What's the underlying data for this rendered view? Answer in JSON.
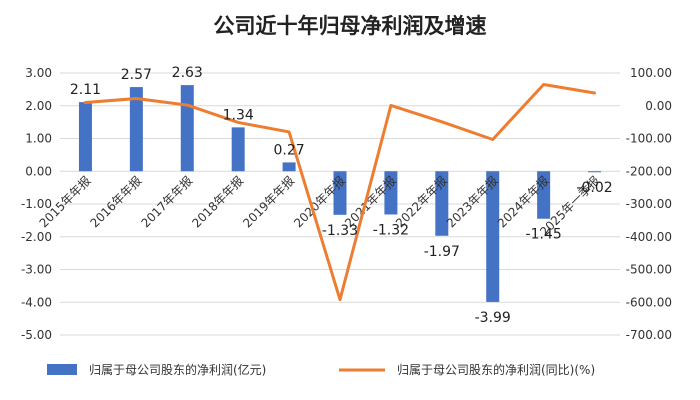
{
  "chart_data": {
    "type": "bar+line",
    "title": "公司近十年归母净利润及增速",
    "categories": [
      "2015年年报",
      "2016年年报",
      "2017年年报",
      "2018年年报",
      "2019年年报",
      "2020年年报",
      "2021年年报",
      "2022年年报",
      "2023年年报",
      "2024年年报",
      "2025年一季报"
    ],
    "series": [
      {
        "name": "归属于母公司股东的净利润(亿元)",
        "type": "bar",
        "axis": "left",
        "color": "#4472C4",
        "values": [
          2.11,
          2.57,
          2.63,
          1.34,
          0.27,
          -1.33,
          -1.32,
          -1.97,
          -3.99,
          -1.45,
          -0.02
        ],
        "labels": [
          "2.11",
          "2.57",
          "2.63",
          "1.34",
          "0.27",
          "-1.33",
          "-1.32",
          "-1.97",
          "-3.99",
          "-1.45",
          "-0.02"
        ]
      },
      {
        "name": "归属于母公司股东的净利润(同比)(%)",
        "type": "line",
        "axis": "right",
        "color": "#ED7D31",
        "values": [
          10,
          22,
          2,
          -51,
          -80,
          -592,
          1,
          -49,
          -103,
          65,
          39
        ]
      }
    ],
    "y_left": {
      "range": [
        -5,
        3
      ],
      "ticks": [
        "3.00",
        "2.00",
        "1.00",
        "0.00",
        "-1.00",
        "-2.00",
        "-3.00",
        "-4.00",
        "-5.00"
      ]
    },
    "y_right": {
      "range": [
        -700,
        100
      ],
      "ticks": [
        "100.00",
        "0.00",
        "-100.00",
        "-200.00",
        "-300.00",
        "-400.00",
        "-500.00",
        "-600.00",
        "-700.00"
      ]
    },
    "grid": true,
    "legend_position": "bottom"
  }
}
